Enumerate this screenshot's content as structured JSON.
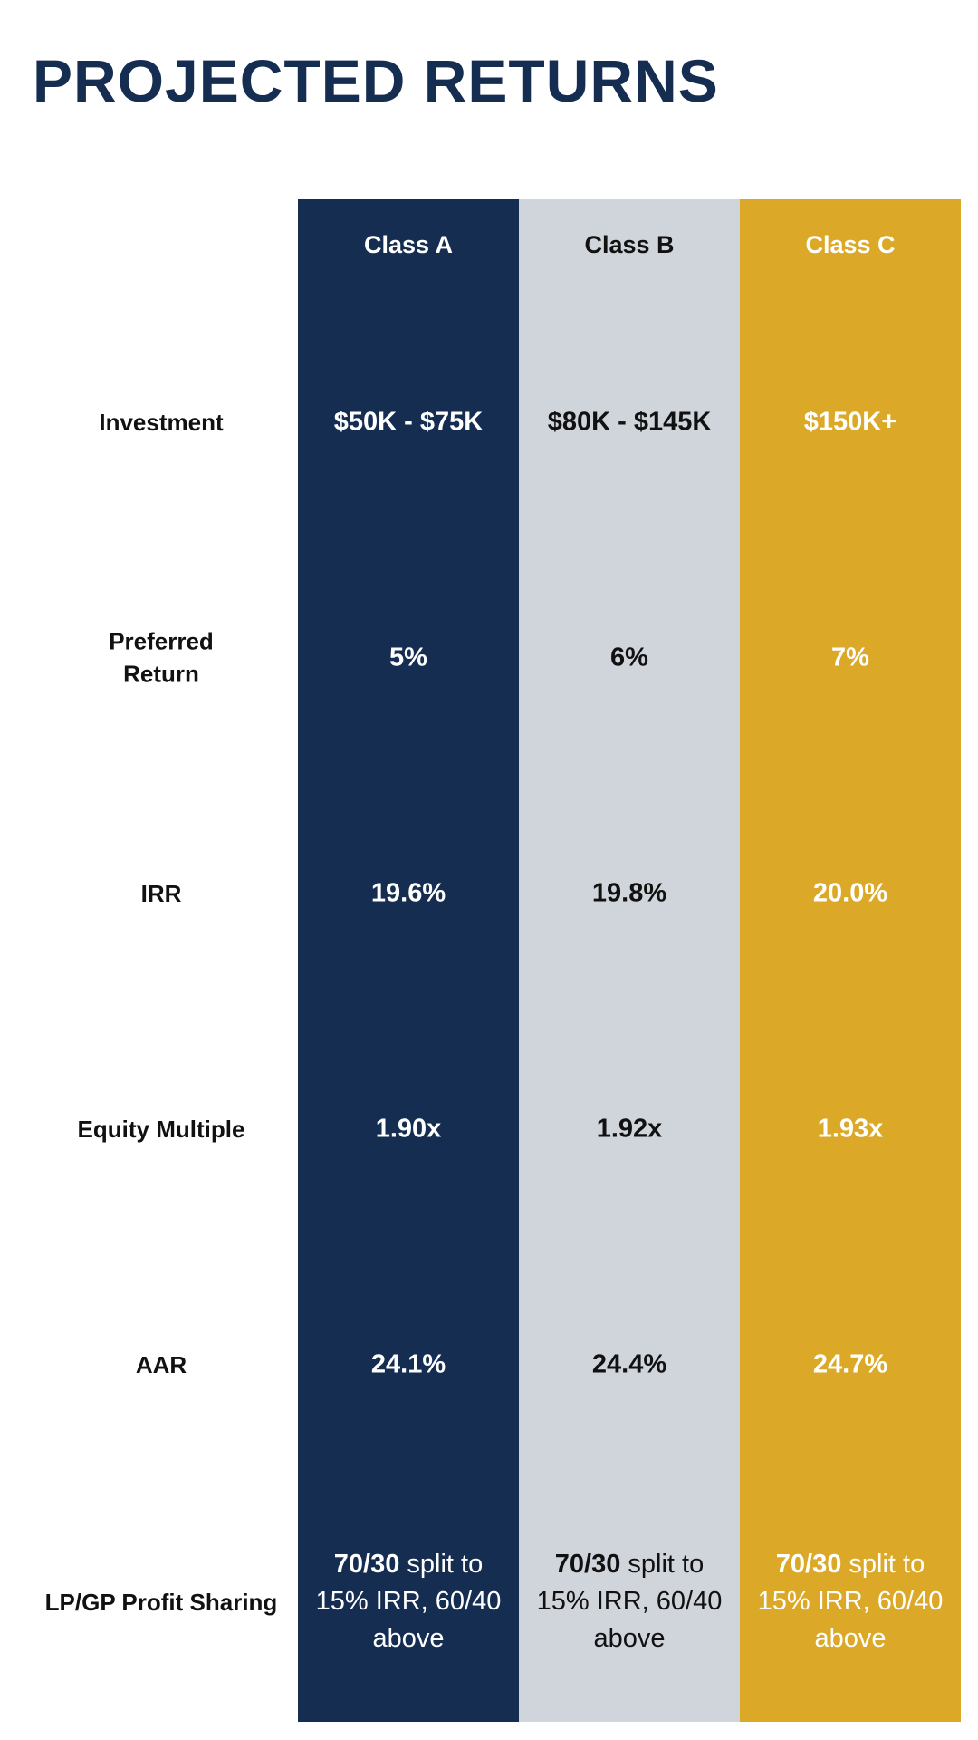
{
  "title": "PROJECTED RETURNS",
  "columns": [
    {
      "name": "Class A",
      "color": "#162d52"
    },
    {
      "name": "Class B",
      "color": "#d0d4db"
    },
    {
      "name": "Class C",
      "color": "#dba927"
    }
  ],
  "rows": [
    {
      "label": "Investment",
      "values": [
        "$50K - $75K",
        "$80K - $145K",
        "$150K+"
      ]
    },
    {
      "label": "Preferred Return",
      "values": [
        "5%",
        "6%",
        "7%"
      ]
    },
    {
      "label": "IRR",
      "values": [
        "19.6%",
        "19.8%",
        "20.0%"
      ]
    },
    {
      "label": "Equity Multiple",
      "values": [
        "1.90x",
        "1.92x",
        "1.93x"
      ]
    },
    {
      "label": "AAR",
      "values": [
        "24.1%",
        "24.4%",
        "24.7%"
      ]
    },
    {
      "label": "LP/GP Profit Sharing",
      "values": [
        {
          "bold": "70/30",
          "rest": " split to 15% IRR, 60/40 above"
        },
        {
          "bold": "70/30",
          "rest": " split to 15% IRR, 60/40 above"
        },
        {
          "bold": "70/30",
          "rest": " split to 15% IRR, 60/40 above"
        }
      ]
    }
  ]
}
